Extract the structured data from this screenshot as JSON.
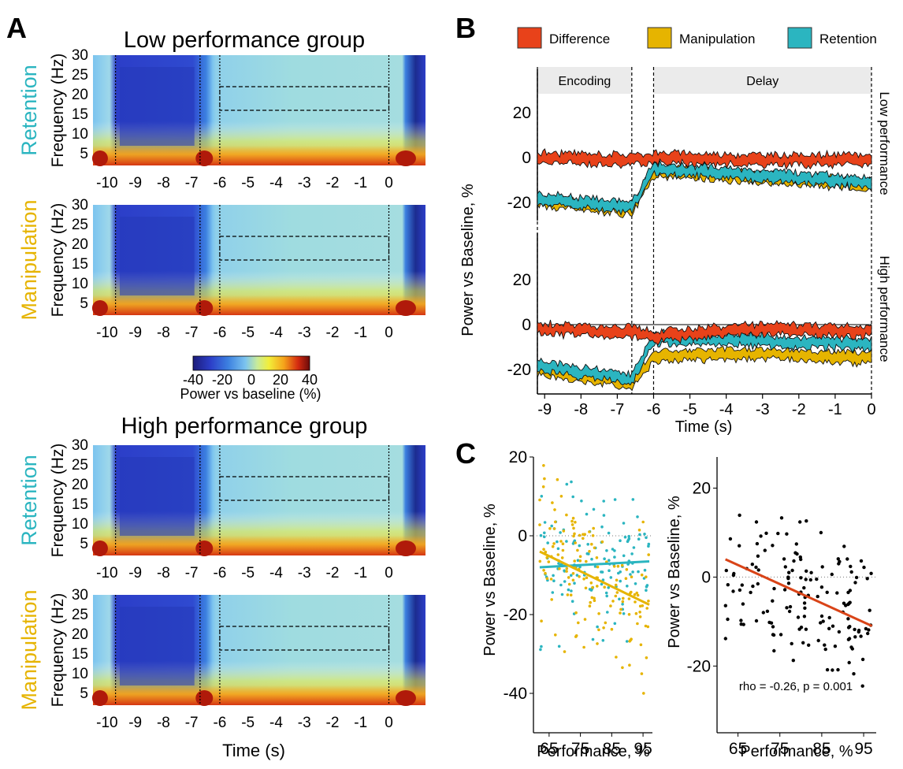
{
  "colors": {
    "difference": "#e8421a",
    "manipulation": "#e6b400",
    "retention": "#2bb5c0",
    "regression_right": "#d94418",
    "heatmap_scale": [
      "#1c1c7a",
      "#2c3ec8",
      "#3c80e0",
      "#7cc4ef",
      "#c8eb9a",
      "#f2ee3a",
      "#f5a21a",
      "#d42a10",
      "#6a0a0a"
    ]
  },
  "panels": {
    "A": {
      "letter": "A",
      "groups": [
        {
          "title": "Low performance group",
          "rows": [
            {
              "condition": "Retention",
              "ylabel": "Frequency (Hz)"
            },
            {
              "condition": "Manipulation",
              "ylabel": "Frequency (Hz)"
            }
          ]
        },
        {
          "title": "High performance group",
          "rows": [
            {
              "condition": "Retention",
              "ylabel": "Frequency (Hz)"
            },
            {
              "condition": "Manipulation",
              "ylabel": "Frequency (Hz)"
            }
          ]
        }
      ],
      "yticks": [
        "30",
        "25",
        "20",
        "15",
        "10",
        "5"
      ],
      "xticks": [
        "-10",
        "-9",
        "-8",
        "-7",
        "-6",
        "-5",
        "-4",
        "-3",
        "-2",
        "-1",
        "0"
      ],
      "xlabel": "Time (s)",
      "colorbar": {
        "ticks": [
          "-40",
          "-20",
          "0",
          "20",
          "40"
        ],
        "label": "Power vs baseline (%)"
      }
    },
    "B": {
      "letter": "B",
      "legend": [
        "Difference",
        "Manipulation",
        "Retention"
      ],
      "bands": [
        "Encoding",
        "Delay"
      ],
      "rows": [
        "Low performance",
        "High performance"
      ],
      "ylabel": "Power vs Baseline, %",
      "xlabel": "Time (s)",
      "yticks": [
        "20",
        "0",
        "-20"
      ],
      "xticks": [
        "-9",
        "-8",
        "-7",
        "-6",
        "-5",
        "-4",
        "-3",
        "-2",
        "-1",
        "0"
      ]
    },
    "C": {
      "letter": "C",
      "left": {
        "ylabel": "Power vs Baseline, %",
        "xlabel": "Performance, %",
        "yticks": [
          "20",
          "0",
          "-20",
          "-40"
        ],
        "xticks": [
          "65",
          "75",
          "85",
          "95"
        ]
      },
      "right": {
        "ylabel": "Power vs Baseline, %",
        "xlabel": "Performance, %",
        "yticks": [
          "20",
          "0",
          "-20"
        ],
        "xticks": [
          "65",
          "75",
          "85",
          "95"
        ],
        "annotation": "rho = -0.26, p = 0.001"
      }
    }
  },
  "chart_data": [
    {
      "type": "heatmap",
      "panel": "A",
      "xlabel": "Time (s)",
      "ylabel": "Frequency (Hz)",
      "xlim": [
        -10.5,
        1.3
      ],
      "ylim": [
        2,
        30
      ],
      "colorbar_range": [
        -40,
        40
      ],
      "event_markers_x": [
        -9.7,
        -6.7,
        -6,
        0
      ],
      "roi": {
        "x": [
          -6,
          0
        ],
        "y": [
          16,
          22
        ]
      }
    },
    {
      "type": "line",
      "panel": "B",
      "xlabel": "Time (s)",
      "ylabel": "Power vs Baseline, %",
      "xlim": [
        -9.2,
        0
      ],
      "ylim": [
        -27,
        27
      ],
      "series": [
        {
          "name": "Difference",
          "low": {
            "x": [
              -9.2,
              -6.6,
              -6.0,
              -3.0,
              0
            ],
            "y": [
              0,
              -1,
              0,
              -1,
              -1
            ]
          },
          "high": {
            "x": [
              -9.2,
              -6.6,
              -6.0,
              -3.0,
              0
            ],
            "y": [
              -2,
              -3,
              -5,
              -2,
              -3
            ]
          }
        },
        {
          "name": "Manipulation",
          "low": {
            "x": [
              -9.2,
              -8.0,
              -6.6,
              -6.0,
              -3.0,
              0
            ],
            "y": [
              -19,
              -21,
              -23,
              -6,
              -9,
              -12
            ]
          },
          "high": {
            "x": [
              -9.2,
              -8.0,
              -6.6,
              -6.0,
              -3.0,
              0
            ],
            "y": [
              -20,
              -23,
              -26,
              -14,
              -13,
              -15
            ]
          }
        },
        {
          "name": "Retention",
          "low": {
            "x": [
              -9.2,
              -8.0,
              -6.6,
              -6.0,
              -3.0,
              0
            ],
            "y": [
              -18,
              -20,
              -22,
              -5,
              -8,
              -11
            ]
          },
          "high": {
            "x": [
              -9.2,
              -8.0,
              -6.6,
              -6.0,
              -3.0,
              0
            ],
            "y": [
              -18,
              -21,
              -24,
              -6,
              -7,
              -9
            ]
          }
        }
      ]
    },
    {
      "type": "scatter",
      "panel": "C-left",
      "xlabel": "Performance, %",
      "ylabel": "Power vs Baseline, %",
      "xlim": [
        60,
        98
      ],
      "ylim": [
        -50,
        20
      ],
      "fits": [
        {
          "series": "Retention",
          "x": [
            62,
            97
          ],
          "y": [
            -8,
            -6.5
          ]
        },
        {
          "series": "Manipulation",
          "x": [
            62,
            97
          ],
          "y": [
            -4,
            -17.5
          ]
        }
      ]
    },
    {
      "type": "scatter",
      "panel": "C-right",
      "xlabel": "Performance, %",
      "ylabel": "Power vs Baseline, %",
      "xlim": [
        60,
        98
      ],
      "ylim": [
        -35,
        27
      ],
      "fit": {
        "x": [
          62,
          97
        ],
        "y": [
          4,
          -11
        ]
      },
      "annotation": "rho = -0.26, p = 0.001"
    }
  ]
}
